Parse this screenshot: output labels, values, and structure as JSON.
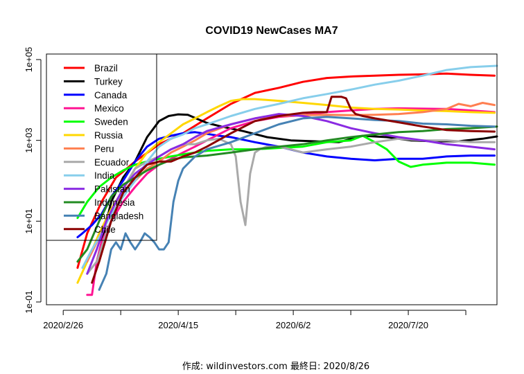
{
  "chart_data": {
    "type": "line",
    "title": "COVID19 NewCases MA7",
    "xlabel": "",
    "ylabel": "",
    "y_scale": "log10",
    "ylim": [
      0.1,
      100000
    ],
    "y_ticks": [
      0.1,
      10,
      1000,
      100000
    ],
    "y_tick_labels": [
      "1e-01",
      "1e+01",
      "1e+03",
      "1e+05"
    ],
    "x_day_range": [
      -7,
      181
    ],
    "x_major_ticks": [
      0,
      48,
      96,
      144
    ],
    "x_minor_ticks": [
      24,
      72,
      120,
      168
    ],
    "x_tick_labels": [
      "2020/2/26",
      "2020/4/15",
      "2020/6/2",
      "2020/7/20"
    ],
    "legend_position": "top-left",
    "caption": "作成: wildinvestors.com 最終日: 2020/8/26",
    "series": [
      {
        "name": "Brazil",
        "color": "#ff0000",
        "x": [
          6,
          10,
          16,
          22,
          30,
          40,
          50,
          60,
          70,
          80,
          90,
          100,
          110,
          120,
          130,
          140,
          150,
          160,
          170,
          180
        ],
        "values": [
          0.7,
          5,
          30,
          120,
          300,
          800,
          1500,
          3500,
          8000,
          15000,
          20000,
          28000,
          35000,
          38000,
          40000,
          42000,
          43000,
          45000,
          42000,
          40000
        ]
      },
      {
        "name": "Turkey",
        "color": "#000000",
        "x": [
          14,
          16,
          20,
          25,
          30,
          35,
          40,
          44,
          48,
          52,
          56,
          60,
          66,
          75,
          85,
          95,
          105,
          115,
          125,
          135,
          145,
          155,
          165,
          175,
          181
        ],
        "values": [
          1,
          3,
          30,
          120,
          300,
          1200,
          3000,
          4000,
          4400,
          4300,
          3400,
          2700,
          2200,
          1700,
          1200,
          1000,
          950,
          900,
          1300,
          1200,
          1000,
          950,
          950,
          1100,
          1250
        ]
      },
      {
        "name": "Canada",
        "color": "#0000ff",
        "x": [
          6,
          8,
          12,
          16,
          20,
          25,
          30,
          35,
          40,
          45,
          50,
          55,
          60,
          65,
          70,
          80,
          90,
          100,
          110,
          120,
          130,
          140,
          150,
          160,
          170,
          180
        ],
        "values": [
          4,
          5,
          8,
          15,
          40,
          100,
          300,
          700,
          1100,
          1300,
          1500,
          1600,
          1450,
          1300,
          1200,
          900,
          700,
          500,
          400,
          350,
          320,
          350,
          350,
          400,
          420,
          420
        ]
      },
      {
        "name": "Mexico",
        "color": "#ff1493",
        "x": [
          10,
          12,
          14,
          16,
          20,
          25,
          30,
          35,
          40,
          45,
          50,
          55,
          60,
          70,
          80,
          90,
          100,
          110,
          120,
          130,
          140,
          150,
          160,
          170,
          180
        ],
        "values": [
          0.15,
          0.15,
          1,
          3,
          10,
          30,
          70,
          150,
          250,
          350,
          500,
          700,
          1000,
          2000,
          3000,
          3800,
          4200,
          5000,
          5500,
          6000,
          6200,
          6100,
          6000,
          5500,
          5000
        ]
      },
      {
        "name": "Sweden",
        "color": "#00ff00",
        "x": [
          6,
          10,
          15,
          20,
          25,
          30,
          35,
          40,
          45,
          50,
          55,
          60,
          70,
          80,
          90,
          100,
          110,
          120,
          125,
          130,
          135,
          140,
          145,
          150,
          160,
          170,
          180
        ],
        "values": [
          12,
          30,
          70,
          120,
          180,
          250,
          300,
          350,
          400,
          450,
          500,
          550,
          600,
          600,
          650,
          700,
          900,
          1000,
          1300,
          900,
          600,
          300,
          220,
          250,
          280,
          280,
          250
        ]
      },
      {
        "name": "Russia",
        "color": "#ffd700",
        "x": [
          6,
          10,
          15,
          20,
          25,
          30,
          35,
          40,
          45,
          50,
          55,
          60,
          65,
          70,
          75,
          80,
          90,
          100,
          110,
          120,
          130,
          140,
          150,
          160,
          170,
          180
        ],
        "values": [
          0.3,
          1,
          5,
          20,
          60,
          200,
          500,
          900,
          1500,
          2500,
          3500,
          5000,
          7000,
          9500,
          10500,
          10500,
          9500,
          8500,
          7500,
          6500,
          6000,
          5800,
          5500,
          5300,
          5000,
          4800
        ]
      },
      {
        "name": "Peru",
        "color": "#ff7f50",
        "x": [
          10,
          14,
          18,
          22,
          26,
          30,
          35,
          40,
          45,
          50,
          55,
          60,
          70,
          80,
          90,
          100,
          110,
          120,
          130,
          140,
          150,
          160,
          165,
          170,
          175,
          180
        ],
        "values": [
          1,
          3,
          10,
          30,
          60,
          100,
          200,
          300,
          500,
          700,
          1000,
          1500,
          2500,
          3500,
          4000,
          4200,
          4300,
          4200,
          4300,
          4500,
          5000,
          6000,
          8000,
          7000,
          8500,
          7500
        ]
      },
      {
        "name": "Ecuador",
        "color": "#a9a9a9",
        "x": [
          10,
          14,
          18,
          22,
          26,
          30,
          35,
          40,
          45,
          50,
          55,
          60,
          65,
          70,
          72,
          74,
          76,
          78,
          80,
          82,
          85,
          90,
          95,
          100,
          110,
          120,
          130,
          140,
          150,
          160,
          170,
          180
        ],
        "values": [
          0.5,
          1,
          5,
          20,
          80,
          200,
          300,
          400,
          600,
          800,
          800,
          1000,
          1100,
          800,
          400,
          30,
          8,
          150,
          500,
          600,
          700,
          700,
          600,
          500,
          600,
          700,
          900,
          1100,
          1000,
          1000,
          900,
          900
        ]
      },
      {
        "name": "India",
        "color": "#87ceeb",
        "x": [
          8,
          12,
          16,
          20,
          25,
          30,
          35,
          40,
          45,
          50,
          55,
          60,
          70,
          80,
          90,
          100,
          110,
          120,
          130,
          140,
          150,
          160,
          170,
          181
        ],
        "values": [
          0.7,
          2,
          5,
          15,
          40,
          100,
          300,
          700,
          1100,
          1400,
          2000,
          2500,
          4000,
          6000,
          8000,
          11000,
          14000,
          18000,
          24000,
          30000,
          40000,
          55000,
          65000,
          70000
        ]
      },
      {
        "name": "Pakistan",
        "color": "#8a2be2",
        "x": [
          10,
          14,
          18,
          22,
          26,
          30,
          35,
          40,
          45,
          50,
          55,
          60,
          70,
          80,
          90,
          100,
          110,
          120,
          130,
          140,
          150,
          160,
          170,
          180
        ],
        "values": [
          0.5,
          2,
          10,
          30,
          80,
          150,
          250,
          400,
          600,
          800,
          1200,
          1700,
          2500,
          3500,
          4500,
          4000,
          3000,
          2000,
          1500,
          1200,
          1000,
          800,
          700,
          600
        ]
      },
      {
        "name": "Indonesia",
        "color": "#228b22",
        "x": [
          6,
          10,
          15,
          20,
          25,
          30,
          35,
          40,
          45,
          50,
          55,
          60,
          70,
          80,
          90,
          100,
          110,
          120,
          130,
          140,
          150,
          160,
          170,
          181
        ],
        "values": [
          1,
          2,
          10,
          40,
          80,
          120,
          180,
          250,
          330,
          380,
          400,
          420,
          500,
          600,
          700,
          800,
          1000,
          1200,
          1400,
          1600,
          1700,
          1900,
          2000,
          2200
        ]
      },
      {
        "name": "Bangladesh",
        "color": "#4682b4",
        "x": [
          15,
          18,
          20,
          22,
          24,
          26,
          28,
          30,
          32,
          34,
          36,
          38,
          40,
          42,
          44,
          46,
          48,
          50,
          55,
          60,
          70,
          80,
          90,
          100,
          110,
          120,
          130,
          140,
          150,
          160,
          170,
          180
        ],
        "values": [
          0.2,
          0.5,
          2,
          3,
          2,
          5,
          3,
          2,
          3,
          5,
          4,
          3,
          2,
          2,
          3,
          30,
          100,
          200,
          400,
          600,
          900,
          1500,
          2500,
          3500,
          3800,
          3500,
          3200,
          3000,
          2600,
          2500,
          2300,
          2200
        ]
      },
      {
        "name": "Chile",
        "color": "#8b0000",
        "x": [
          12,
          15,
          20,
          25,
          30,
          35,
          40,
          45,
          50,
          55,
          60,
          70,
          80,
          90,
          100,
          105,
          110,
          112,
          114,
          116,
          118,
          120,
          122,
          125,
          130,
          140,
          150,
          160,
          170,
          180
        ],
        "values": [
          0.3,
          1,
          10,
          50,
          120,
          250,
          300,
          300,
          400,
          500,
          700,
          1500,
          3000,
          4000,
          4800,
          5000,
          5000,
          12000,
          12000,
          12000,
          11000,
          6000,
          4500,
          4000,
          3500,
          2800,
          2200,
          1800,
          1700,
          1650
        ]
      }
    ]
  }
}
